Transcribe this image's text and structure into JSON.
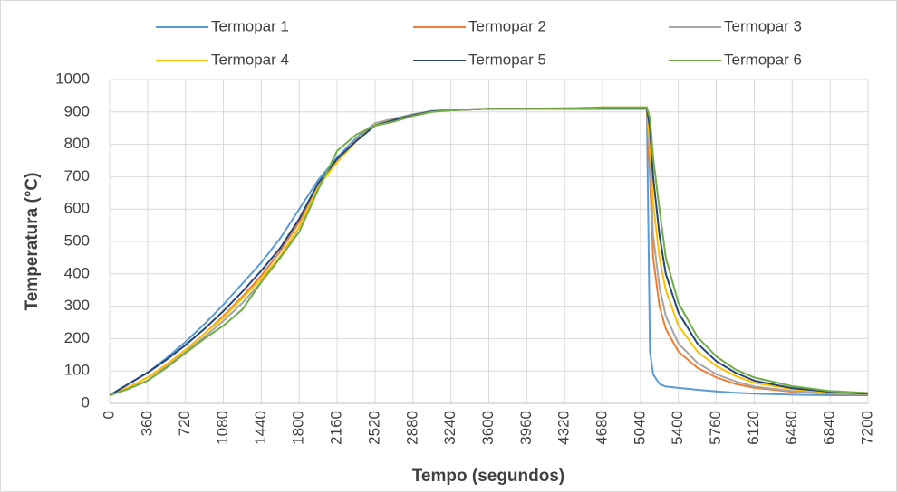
{
  "chart_data": {
    "type": "line",
    "x_label": "Tempo (segundos)",
    "y_label": "Temperatura (°C)",
    "x": [
      0,
      180,
      360,
      540,
      720,
      900,
      1080,
      1260,
      1440,
      1620,
      1800,
      1980,
      2160,
      2340,
      2520,
      2700,
      2880,
      3060,
      3240,
      3600,
      3960,
      4320,
      4680,
      5040,
      5100,
      5130,
      5160,
      5220,
      5280,
      5400,
      5580,
      5760,
      5940,
      6120,
      6480,
      6840,
      7200
    ],
    "series": [
      {
        "name": "Termopar 1",
        "color": "#5b9bd5",
        "values": [
          25,
          60,
          95,
          140,
          190,
          245,
          305,
          370,
          435,
          510,
          600,
          690,
          760,
          820,
          865,
          878,
          893,
          903,
          906,
          910,
          910,
          910,
          910,
          910,
          910,
          160,
          90,
          60,
          52,
          48,
          42,
          37,
          33,
          30,
          27,
          25,
          25
        ]
      },
      {
        "name": "Termopar 2",
        "color": "#ed7d31",
        "values": [
          25,
          50,
          80,
          120,
          165,
          215,
          270,
          330,
          395,
          470,
          560,
          680,
          750,
          810,
          860,
          875,
          890,
          902,
          905,
          910,
          910,
          910,
          912,
          912,
          912,
          700,
          450,
          300,
          230,
          160,
          110,
          80,
          60,
          48,
          36,
          30,
          28
        ]
      },
      {
        "name": "Termopar 3",
        "color": "#a5a5a5",
        "values": [
          25,
          45,
          70,
          115,
          160,
          205,
          255,
          310,
          375,
          450,
          545,
          670,
          750,
          815,
          865,
          880,
          893,
          903,
          906,
          910,
          910,
          910,
          912,
          912,
          912,
          760,
          520,
          360,
          270,
          185,
          125,
          90,
          68,
          52,
          38,
          31,
          28
        ]
      },
      {
        "name": "Termopar 4",
        "color": "#ffc000",
        "values": [
          25,
          50,
          80,
          120,
          165,
          215,
          265,
          325,
          385,
          455,
          545,
          670,
          745,
          810,
          860,
          875,
          890,
          902,
          905,
          910,
          910,
          912,
          914,
          914,
          914,
          800,
          620,
          450,
          350,
          240,
          160,
          115,
          85,
          63,
          44,
          34,
          30
        ]
      },
      {
        "name": "Termopar 5",
        "color": "#264478",
        "values": [
          25,
          60,
          95,
          135,
          180,
          230,
          285,
          345,
          410,
          480,
          570,
          680,
          755,
          810,
          858,
          875,
          890,
          902,
          905,
          910,
          910,
          910,
          910,
          910,
          910,
          850,
          700,
          520,
          400,
          280,
          185,
          130,
          95,
          70,
          47,
          36,
          30
        ]
      },
      {
        "name": "Termopar 6",
        "color": "#70ad47",
        "values": [
          25,
          45,
          70,
          110,
          155,
          200,
          240,
          290,
          375,
          450,
          530,
          660,
          780,
          830,
          858,
          870,
          888,
          900,
          905,
          910,
          910,
          910,
          914,
          914,
          914,
          880,
          760,
          600,
          450,
          310,
          205,
          145,
          105,
          80,
          53,
          38,
          32
        ]
      }
    ],
    "xlim": [
      0,
      7200
    ],
    "xticks": [
      0,
      360,
      720,
      1080,
      1440,
      1800,
      2160,
      2520,
      2880,
      3240,
      3600,
      3960,
      4320,
      4680,
      5040,
      5400,
      5760,
      6120,
      6480,
      6840,
      7200
    ],
    "ylim": [
      0,
      1000
    ],
    "yticks": [
      0,
      100,
      200,
      300,
      400,
      500,
      600,
      700,
      800,
      900,
      1000
    ],
    "grid": true,
    "legend": "top"
  }
}
